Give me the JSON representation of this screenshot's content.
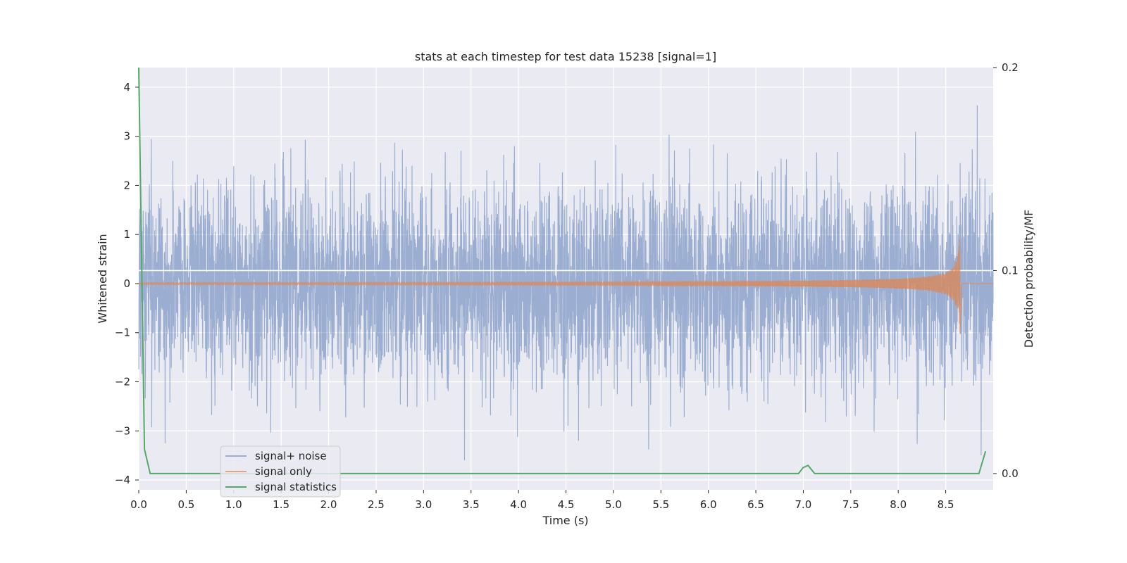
{
  "chart_data": {
    "type": "line",
    "title": "stats at each timestep for test data 15238 [signal=1]",
    "xlabel": "Time (s)",
    "ylabel": "Whitened strain",
    "y2label": "Detection probability/MF",
    "xlim": [
      0.0,
      9.0
    ],
    "ylim": [
      -4.2,
      4.4
    ],
    "y2lim": [
      -0.008,
      0.2
    ],
    "xticks": [
      "0.0",
      "0.5",
      "1.0",
      "1.5",
      "2.0",
      "2.5",
      "3.0",
      "3.5",
      "4.0",
      "4.5",
      "5.0",
      "5.5",
      "6.0",
      "6.5",
      "7.0",
      "7.5",
      "8.0",
      "8.5"
    ],
    "yticks": [
      "4",
      "3",
      "2",
      "1",
      "0",
      "−1",
      "−2",
      "−3",
      "−4"
    ],
    "y2ticks": [
      "0.2",
      "0.1",
      "0.0"
    ],
    "grid": true,
    "legend_position": "lower-left",
    "series": [
      {
        "name": "signal+ noise",
        "color": "#4c72b0",
        "axis": "left",
        "sample_rate": 512,
        "amplitude_envelope": {
          "typical": 1.0,
          "max": 4.0,
          "min": -3.6
        }
      },
      {
        "name": "signal only",
        "color": "#dd8452",
        "axis": "left",
        "chirp": {
          "t_merger": 8.65,
          "peak_amplitude": 1.0,
          "min_amplitude": -1.05
        }
      },
      {
        "name": "signal statistics",
        "color": "#55a868",
        "axis": "right",
        "x": [
          0.0,
          0.06,
          0.12,
          0.5,
          0.6,
          6.95,
          7.0,
          7.05,
          7.12,
          8.85,
          8.92
        ],
        "y": [
          0.2,
          0.012,
          0.0,
          0.0,
          0.0,
          0.0,
          0.003,
          0.004,
          0.0,
          0.0,
          0.011
        ]
      }
    ],
    "hline_right_axis": 0.1
  }
}
